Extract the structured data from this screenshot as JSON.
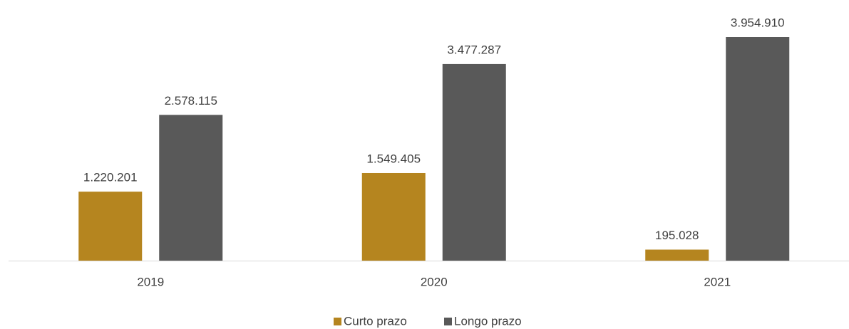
{
  "chart_data": {
    "type": "bar",
    "categories": [
      "2019",
      "2020",
      "2021"
    ],
    "series": [
      {
        "name": "Curto prazo",
        "color": "#b5851f",
        "values": [
          1220201,
          1549405,
          195028
        ],
        "value_labels": [
          "1.220.201",
          "1.549.405",
          "195.028"
        ]
      },
      {
        "name": "Longo prazo",
        "color": "#595959",
        "values": [
          2578115,
          3477287,
          3954910
        ],
        "value_labels": [
          "2.578.115",
          "3.477.287",
          "3.954.910"
        ]
      }
    ]
  }
}
